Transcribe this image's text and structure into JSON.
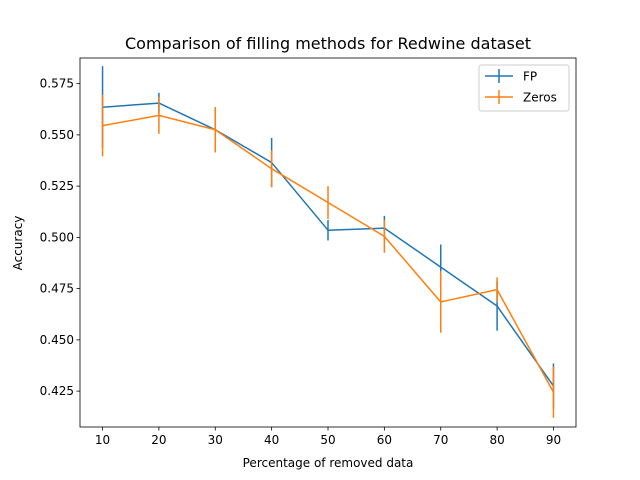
{
  "chart_data": {
    "type": "line",
    "title": "Comparison of filling methods for Redwine dataset",
    "xlabel": "Percentage of removed data",
    "ylabel": "Accuracy",
    "x": [
      10,
      20,
      30,
      40,
      50,
      60,
      70,
      80,
      90
    ],
    "xticks": [
      "10",
      "20",
      "30",
      "40",
      "50",
      "60",
      "70",
      "80",
      "90"
    ],
    "yticks": [
      "0.425",
      "0.450",
      "0.475",
      "0.500",
      "0.525",
      "0.550",
      "0.575"
    ],
    "ytick_values": [
      0.425,
      0.45,
      0.475,
      0.5,
      0.525,
      0.55,
      0.575
    ],
    "xlim": [
      6,
      94
    ],
    "ylim": [
      0.4075,
      0.5875
    ],
    "grid": false,
    "legend_position": "top-right",
    "series": [
      {
        "name": "FP",
        "color": "#1f77b4",
        "values": [
          0.5635,
          0.5655,
          0.5525,
          0.5365,
          0.5035,
          0.5045,
          0.4855,
          0.4665,
          0.4275
        ],
        "errors": [
          0.02,
          0.005,
          0.011,
          0.012,
          0.005,
          0.006,
          0.011,
          0.012,
          0.011
        ]
      },
      {
        "name": "Zeros",
        "color": "#ff7f0e",
        "values": [
          0.5545,
          0.5595,
          0.5525,
          0.5335,
          0.517,
          0.5005,
          0.4685,
          0.4745,
          0.4245
        ],
        "errors": [
          0.015,
          0.009,
          0.011,
          0.009,
          0.008,
          0.008,
          0.015,
          0.006,
          0.0125
        ]
      }
    ]
  }
}
